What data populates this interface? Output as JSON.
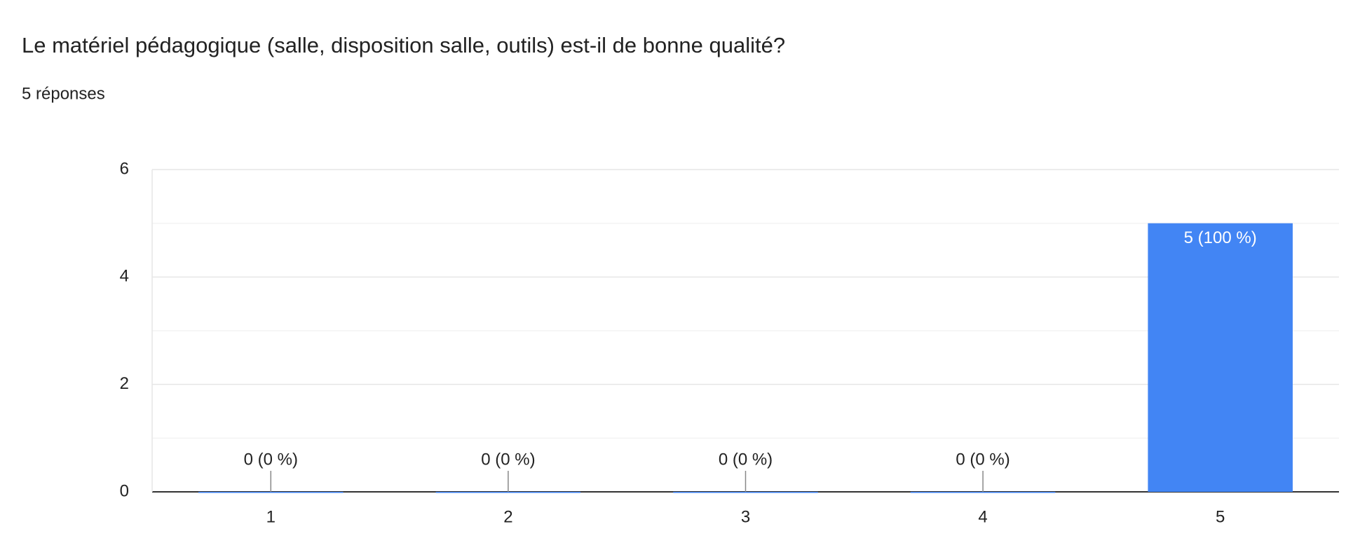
{
  "chart_data": {
    "type": "bar",
    "title": "Le matériel pédagogique (salle, disposition salle, outils) est-il de bonne qualité?",
    "subtitle": "5 réponses",
    "categories": [
      "1",
      "2",
      "3",
      "4",
      "5"
    ],
    "values": [
      0,
      0,
      0,
      0,
      5
    ],
    "value_labels": [
      "0 (0 %)",
      "0 (0 %)",
      "0 (0 %)",
      "0 (0 %)",
      "5 (100 %)"
    ],
    "color": "#4285f4",
    "ylim": [
      0,
      6
    ],
    "yticks": [
      0,
      2,
      4,
      6
    ],
    "yminor": [
      1,
      3,
      5
    ],
    "grid": true
  }
}
